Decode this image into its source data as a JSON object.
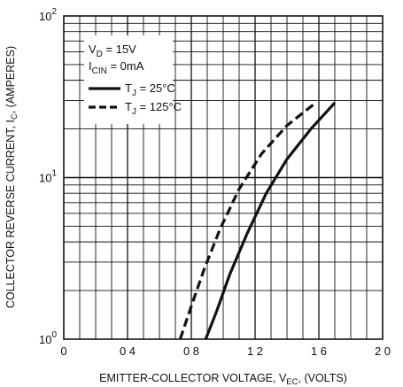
{
  "chart_data": {
    "type": "line",
    "xlabel": "EMITTER-COLLECTOR VOLTAGE, V",
    "xlabel_sub": "EC",
    "xlabel_unit": ", (VOLTS)",
    "ylabel": "COLLECTOR REVERSE CURRENT, I",
    "ylabel_sub": "C",
    "ylabel_unit": ", (AMPERES)",
    "x_ticks": [
      "0",
      "0 4",
      "0 8",
      "1 2",
      "1 6",
      "2 0"
    ],
    "xlim": [
      0,
      2.0
    ],
    "y_scale": "log",
    "ylim": [
      1,
      100
    ],
    "y_ticks": [
      {
        "base": "10",
        "exp": "0",
        "value": 1
      },
      {
        "base": "10",
        "exp": "1",
        "value": 10
      },
      {
        "base": "10",
        "exp": "2",
        "value": 100
      }
    ],
    "grid": true,
    "legend_position": "top-left",
    "conditions": [
      {
        "main": "V",
        "sub": "D",
        "rest": " = 15V"
      },
      {
        "main": "I",
        "sub": "CIN",
        "rest": " = 0mA"
      }
    ],
    "series": [
      {
        "name": "T",
        "name_sub": "J",
        "name_rest": " = 25°C",
        "style": "solid",
        "x": [
          0.89,
          0.96,
          1.04,
          1.15,
          1.27,
          1.4,
          1.55,
          1.7
        ],
        "y": [
          1.0,
          1.5,
          2.5,
          4.5,
          8.0,
          13.0,
          20.0,
          29.0
        ]
      },
      {
        "name": "T",
        "name_sub": "J",
        "name_rest": " = 125°C",
        "style": "dashed",
        "x": [
          0.73,
          0.8,
          0.88,
          0.98,
          1.1,
          1.24,
          1.4,
          1.58
        ],
        "y": [
          1.0,
          1.6,
          2.7,
          4.8,
          8.5,
          14.0,
          21.0,
          29.0
        ]
      }
    ]
  }
}
